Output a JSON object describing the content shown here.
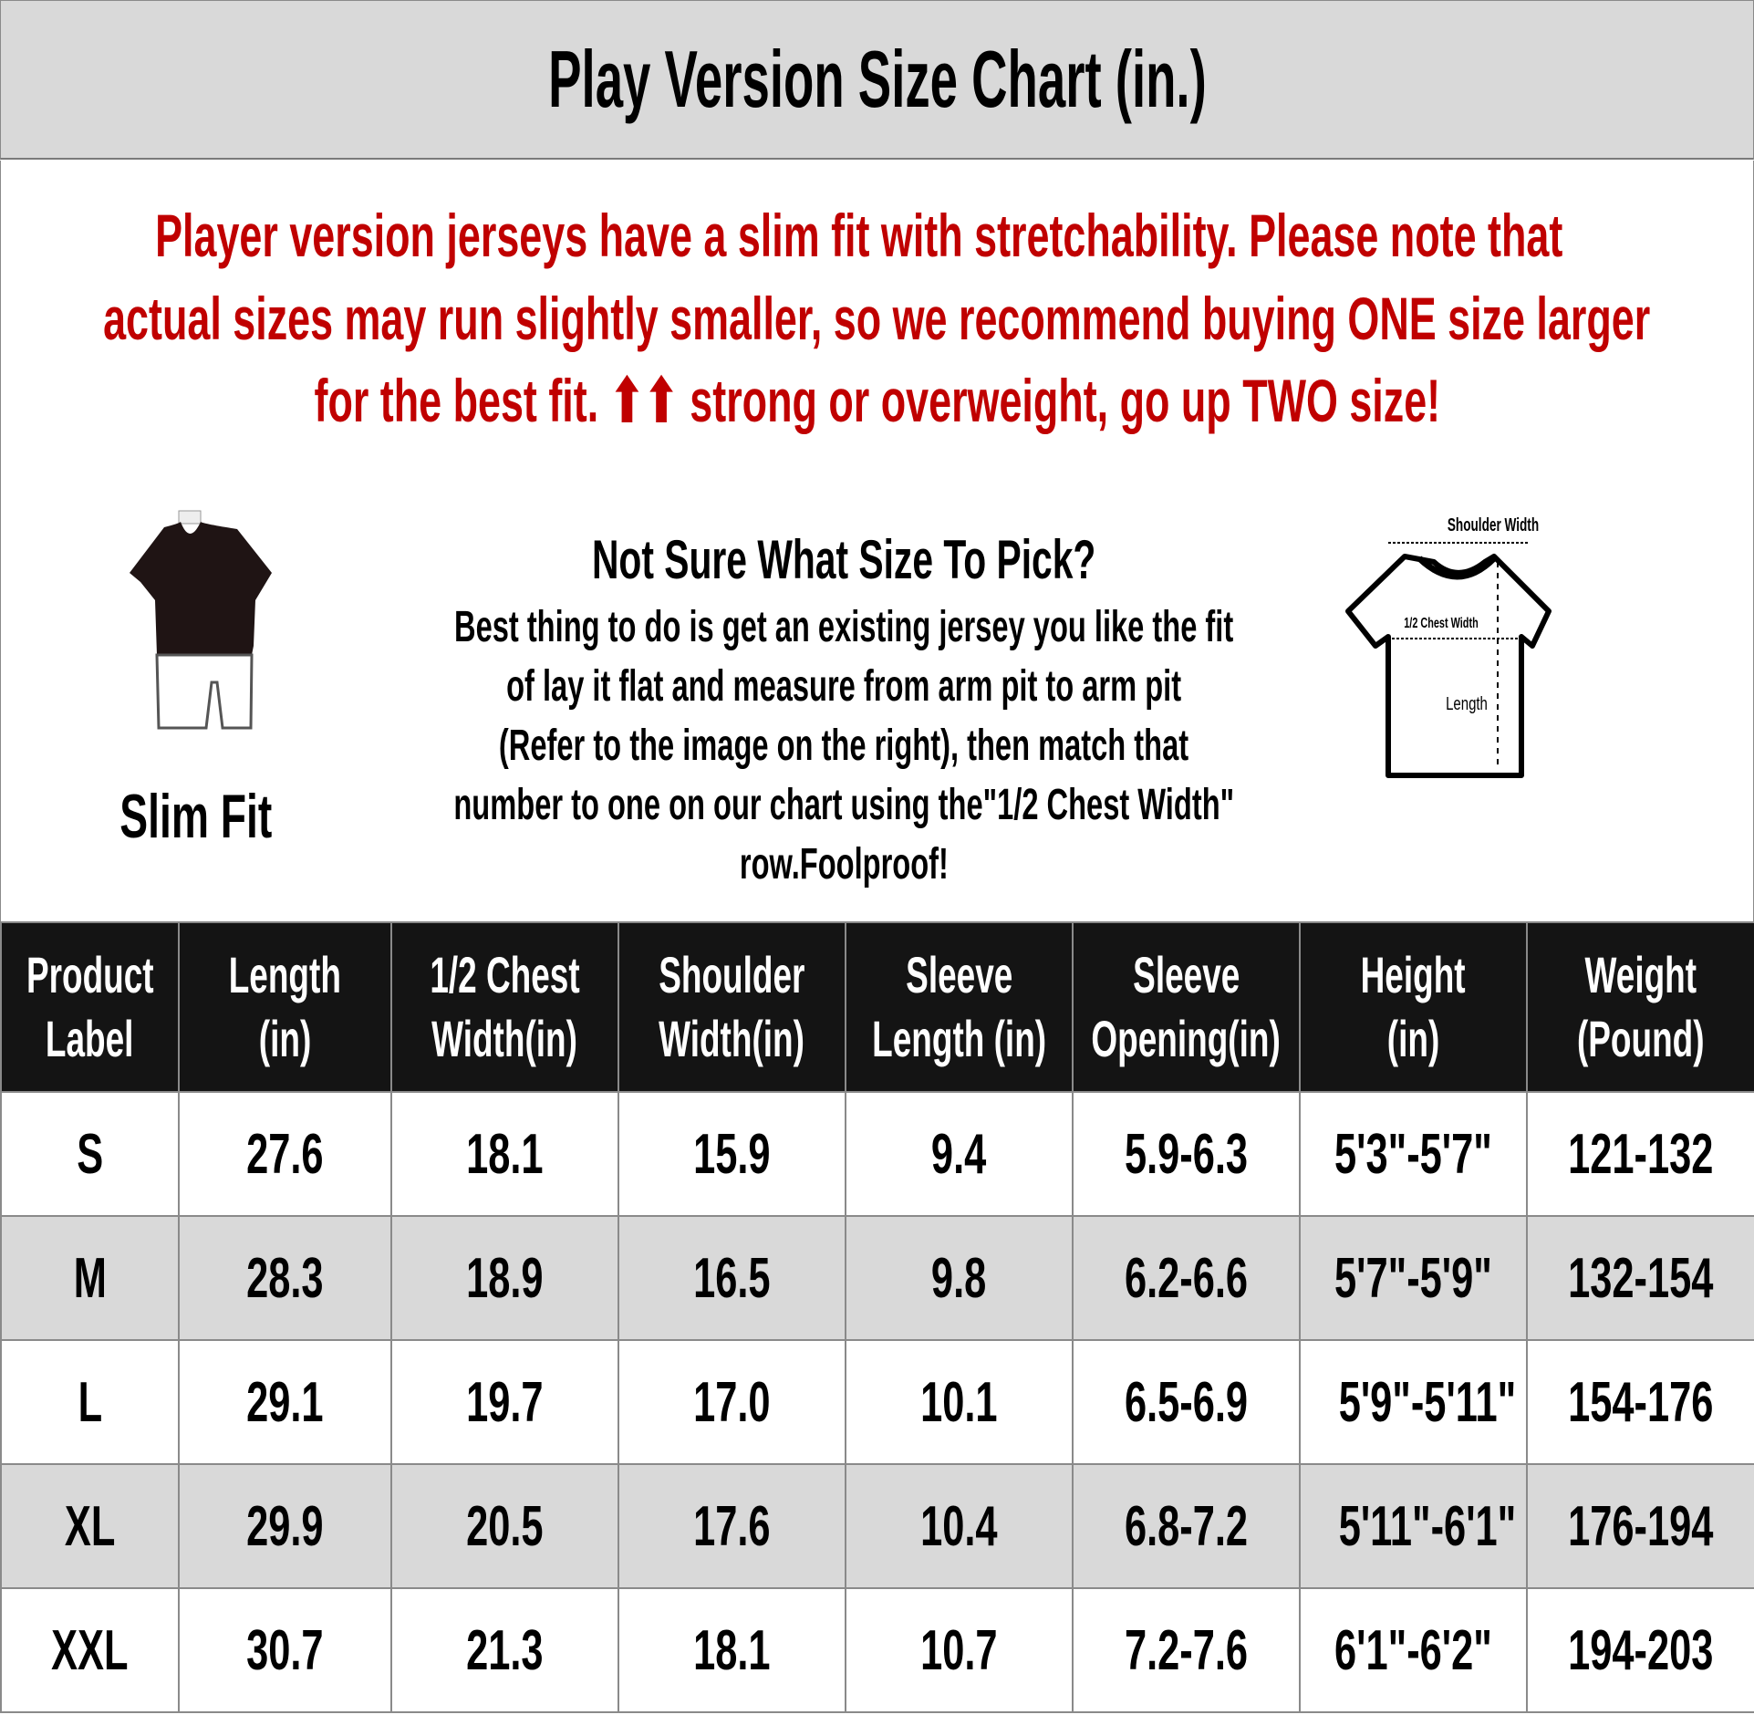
{
  "title": "Play Version Size Chart (in.)",
  "notice": {
    "icon": "pushpin-icon",
    "lines": [
      "Player version jerseys have a slim fit with stretchability. Please note that",
      "actual sizes may run slightly smaller, so we recommend buying ONE size larger",
      "for the best fit. ⬆⬆ strong or overweight, go up TWO size!"
    ],
    "color": "#c00000"
  },
  "fit": {
    "label": "Slim Fit",
    "icon": "slim-fit-mannequin-icon"
  },
  "help": {
    "title": "Not Sure What Size To Pick?",
    "lines": [
      "Best thing to do is get an existing jersey you like the fit",
      "of lay it flat and measure from arm pit to arm pit",
      "(Refer to the image on the right), then match that",
      "number to one on our chart using the\"1/2 Chest Width\"",
      "row.Foolproof!"
    ]
  },
  "diagram": {
    "shoulder": "Shoulder Width",
    "chest": "1/2 Chest Width",
    "length": "Length",
    "icon": "tshirt-measurement-icon"
  },
  "table": {
    "headers": [
      [
        "Product",
        "Label"
      ],
      [
        "Length",
        "(in)"
      ],
      [
        "1/2 Chest",
        "Width(in)"
      ],
      [
        "Shoulder",
        "Width(in)"
      ],
      [
        "Sleeve",
        "Length (in)"
      ],
      [
        "Sleeve",
        "Opening(in)"
      ],
      [
        "Height",
        "(in)"
      ],
      [
        "Weight",
        "(Pound)"
      ]
    ],
    "rows": [
      [
        "S",
        "27.6",
        "18.1",
        "15.9",
        "9.4",
        "5.9-6.3",
        "5'3\"-5'7\"",
        "121-132"
      ],
      [
        "M",
        "28.3",
        "18.9",
        "16.5",
        "9.8",
        "6.2-6.6",
        "5'7\"-5'9\"",
        "132-154"
      ],
      [
        "L",
        "29.1",
        "19.7",
        "17.0",
        "10.1",
        "6.5-6.9",
        "5'9\"-5'11\"",
        "154-176"
      ],
      [
        "XL",
        "29.9",
        "20.5",
        "17.6",
        "10.4",
        "6.8-7.2",
        "5'11\"-6'1\"",
        "176-194"
      ],
      [
        "XXL",
        "30.7",
        "21.3",
        "18.1",
        "10.7",
        "7.2-7.6",
        "6'1\"-6'2\"",
        "194-203"
      ]
    ]
  }
}
